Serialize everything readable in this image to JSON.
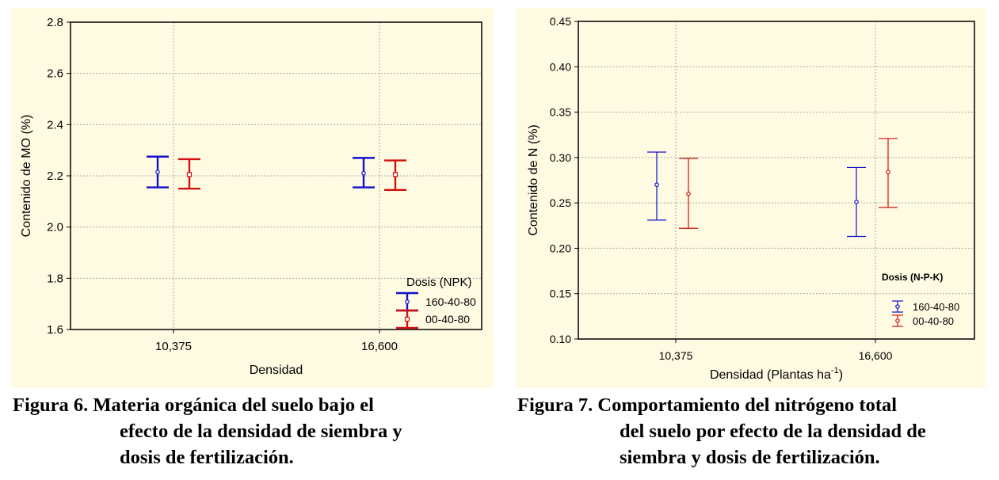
{
  "chart_data": [
    {
      "type": "errorbar",
      "categories": [
        "10,375",
        "16,600"
      ],
      "xlabel": "Densidad",
      "ylabel": "Contenido de MO (%)",
      "ylim": [
        1.6,
        2.8
      ],
      "yticks": [
        "1.6",
        "1.8",
        "2.0",
        "2.2",
        "2.4",
        "2.6",
        "2.8"
      ],
      "grid": true,
      "legend_title": "Dosis (NPK)",
      "legend_position": "bottom-right",
      "series": [
        {
          "name": "160-40-80",
          "color": "#1010c8",
          "marker": "circle",
          "mean": [
            2.215,
            2.21
          ],
          "lower": [
            2.155,
            2.155
          ],
          "upper": [
            2.275,
            2.27
          ]
        },
        {
          "name": "00-40-80",
          "color": "#d01010",
          "marker": "square",
          "mean": [
            2.205,
            2.205
          ],
          "lower": [
            2.15,
            2.145
          ],
          "upper": [
            2.265,
            2.26
          ]
        }
      ]
    },
    {
      "type": "errorbar",
      "categories": [
        "10,375",
        "16,600"
      ],
      "xlabel": "Densidad (Plantas ha",
      "xlabel_sup": "-1",
      "xlabel_end": ")",
      "ylabel": "Contenido de N (%)",
      "ylim": [
        0.1,
        0.45
      ],
      "yticks": [
        "0.10",
        "0.15",
        "0.20",
        "0.25",
        "0.30",
        "0.35",
        "0.40",
        "0.45"
      ],
      "grid": true,
      "legend_title": "Dosis (N-P-K)",
      "legend_position": "bottom-right",
      "series": [
        {
          "name": "160-40-80",
          "color": "#1010c8",
          "marker": "circle",
          "mean": [
            0.27,
            0.251
          ],
          "lower": [
            0.231,
            0.213
          ],
          "upper": [
            0.306,
            0.289
          ]
        },
        {
          "name": "00-40-80",
          "color": "#d01010",
          "marker": "circle",
          "mean": [
            0.26,
            0.284
          ],
          "lower": [
            0.222,
            0.245
          ],
          "upper": [
            0.299,
            0.321
          ]
        }
      ]
    }
  ],
  "captions": {
    "left": {
      "line1": "Figura 6. Materia orgánica del suelo bajo el",
      "line2": "efecto de la densidad de siembra y",
      "line3": "dosis de fertilización."
    },
    "right": {
      "line1": "Figura 7. Comportamiento del nitrógeno total",
      "line2": "del suelo por efecto de la densidad de",
      "line3": "siembra y dosis de fertilización."
    }
  }
}
